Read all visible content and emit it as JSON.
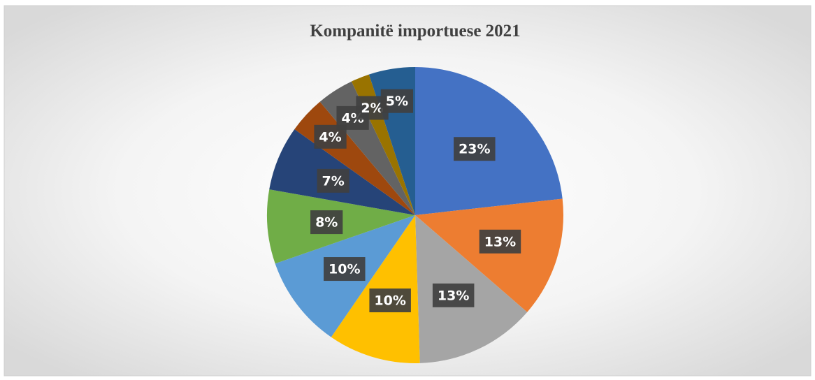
{
  "chart_data": {
    "type": "pie",
    "title": "Kompanitë importuese 2021",
    "values": [
      23,
      13,
      13,
      10,
      10,
      8,
      7,
      4,
      4,
      2,
      5
    ],
    "value_labels": [
      "23%",
      "13%",
      "13%",
      "10%",
      "10%",
      "8%",
      "7%",
      "4%",
      "4%",
      "2%",
      "5%"
    ],
    "colors": [
      "#4472c4",
      "#ed7d31",
      "#a5a5a5",
      "#ffc000",
      "#5b9bd5",
      "#70ad47",
      "#264478",
      "#9e480e",
      "#636363",
      "#997300",
      "#255e91"
    ]
  }
}
